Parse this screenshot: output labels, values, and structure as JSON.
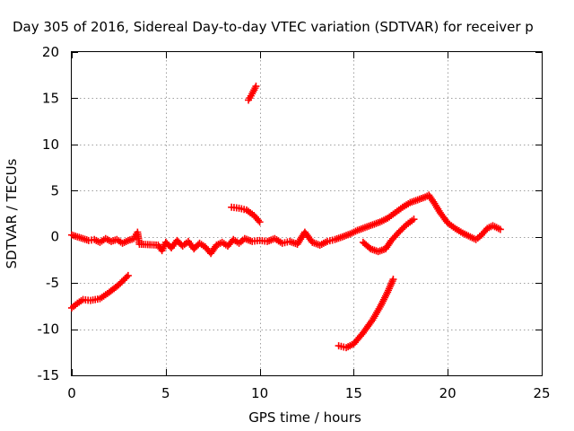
{
  "chart_data": {
    "type": "scatter",
    "title": "Day 305 of 2016, Sidereal Day-to-day VTEC variation (SDTVAR) for receiver p",
    "xlabel": "GPS time / hours",
    "ylabel": "SDTVAR / TECUs",
    "xlim": [
      0,
      25
    ],
    "ylim": [
      -15,
      20
    ],
    "xticks": [
      0,
      5,
      10,
      15,
      20,
      25
    ],
    "yticks": [
      -15,
      -10,
      -5,
      0,
      5,
      10,
      15,
      20
    ],
    "grid": true,
    "marker": "+",
    "color": "#ff0000",
    "series": [
      {
        "values": [
          [
            0.0,
            0.2
          ],
          [
            0.3,
            0.0
          ],
          [
            0.6,
            -0.2
          ],
          [
            0.9,
            -0.4
          ],
          [
            1.2,
            -0.3
          ],
          [
            1.5,
            -0.6
          ],
          [
            1.8,
            -0.2
          ],
          [
            2.1,
            -0.5
          ],
          [
            2.4,
            -0.3
          ],
          [
            2.7,
            -0.7
          ],
          [
            3.0,
            -0.4
          ],
          [
            3.3,
            -0.2
          ],
          [
            3.5,
            0.5
          ],
          [
            3.6,
            -0.8
          ],
          [
            4.6,
            -0.9
          ],
          [
            4.8,
            -1.5
          ],
          [
            5.0,
            -0.6
          ],
          [
            5.3,
            -1.2
          ],
          [
            5.6,
            -0.4
          ],
          [
            5.9,
            -1.0
          ],
          [
            6.2,
            -0.5
          ],
          [
            6.5,
            -1.3
          ],
          [
            6.8,
            -0.7
          ],
          [
            7.1,
            -1.1
          ],
          [
            7.4,
            -1.8
          ],
          [
            7.7,
            -0.9
          ],
          [
            8.0,
            -0.6
          ],
          [
            8.3,
            -1.0
          ],
          [
            8.6,
            -0.3
          ],
          [
            8.9,
            -0.7
          ],
          [
            9.2,
            -0.2
          ],
          [
            9.6,
            -0.5
          ],
          [
            10.0,
            -0.4
          ],
          [
            10.4,
            -0.5
          ],
          [
            10.8,
            -0.2
          ],
          [
            11.2,
            -0.7
          ],
          [
            11.6,
            -0.5
          ],
          [
            12.0,
            -0.8
          ],
          [
            12.4,
            0.5
          ],
          [
            12.8,
            -0.6
          ],
          [
            13.2,
            -0.9
          ],
          [
            13.6,
            -0.5
          ],
          [
            14.0,
            -0.3
          ],
          [
            14.4,
            0.0
          ],
          [
            14.8,
            0.3
          ],
          [
            15.2,
            0.7
          ],
          [
            15.6,
            1.0
          ],
          [
            16.0,
            1.3
          ],
          [
            16.4,
            1.6
          ],
          [
            16.8,
            2.0
          ],
          [
            17.2,
            2.6
          ],
          [
            17.6,
            3.2
          ],
          [
            18.0,
            3.7
          ],
          [
            18.4,
            4.0
          ],
          [
            18.8,
            4.3
          ],
          [
            19.0,
            4.5
          ],
          [
            19.3,
            3.6
          ],
          [
            19.6,
            2.6
          ],
          [
            20.0,
            1.5
          ],
          [
            20.4,
            0.9
          ],
          [
            20.8,
            0.4
          ],
          [
            21.2,
            0.0
          ],
          [
            21.5,
            -0.3
          ],
          [
            21.8,
            0.2
          ],
          [
            22.1,
            0.9
          ],
          [
            22.4,
            1.2
          ],
          [
            22.8,
            0.8
          ]
        ]
      },
      {
        "values": [
          [
            0.0,
            -7.7
          ],
          [
            0.3,
            -7.2
          ],
          [
            0.6,
            -6.8
          ],
          [
            1.0,
            -6.9
          ],
          [
            1.5,
            -6.7
          ],
          [
            2.0,
            -6.0
          ],
          [
            2.5,
            -5.2
          ],
          [
            3.0,
            -4.2
          ]
        ]
      },
      {
        "values": [
          [
            9.4,
            14.8
          ],
          [
            9.6,
            15.5
          ],
          [
            9.8,
            16.3
          ]
        ]
      },
      {
        "values": [
          [
            8.5,
            3.2
          ],
          [
            8.9,
            3.1
          ],
          [
            9.3,
            2.9
          ],
          [
            9.7,
            2.3
          ],
          [
            10.0,
            1.6
          ]
        ]
      },
      {
        "values": [
          [
            15.5,
            -0.6
          ],
          [
            15.9,
            -1.3
          ],
          [
            16.3,
            -1.6
          ],
          [
            16.7,
            -1.3
          ],
          [
            17.0,
            -0.4
          ],
          [
            17.4,
            0.5
          ],
          [
            17.8,
            1.3
          ],
          [
            18.2,
            1.9
          ]
        ]
      },
      {
        "values": [
          [
            14.2,
            -11.8
          ],
          [
            14.6,
            -12.0
          ],
          [
            15.0,
            -11.6
          ],
          [
            15.5,
            -10.4
          ],
          [
            16.0,
            -9.0
          ],
          [
            16.4,
            -7.6
          ],
          [
            16.8,
            -6.0
          ],
          [
            17.1,
            -4.6
          ]
        ]
      }
    ]
  }
}
